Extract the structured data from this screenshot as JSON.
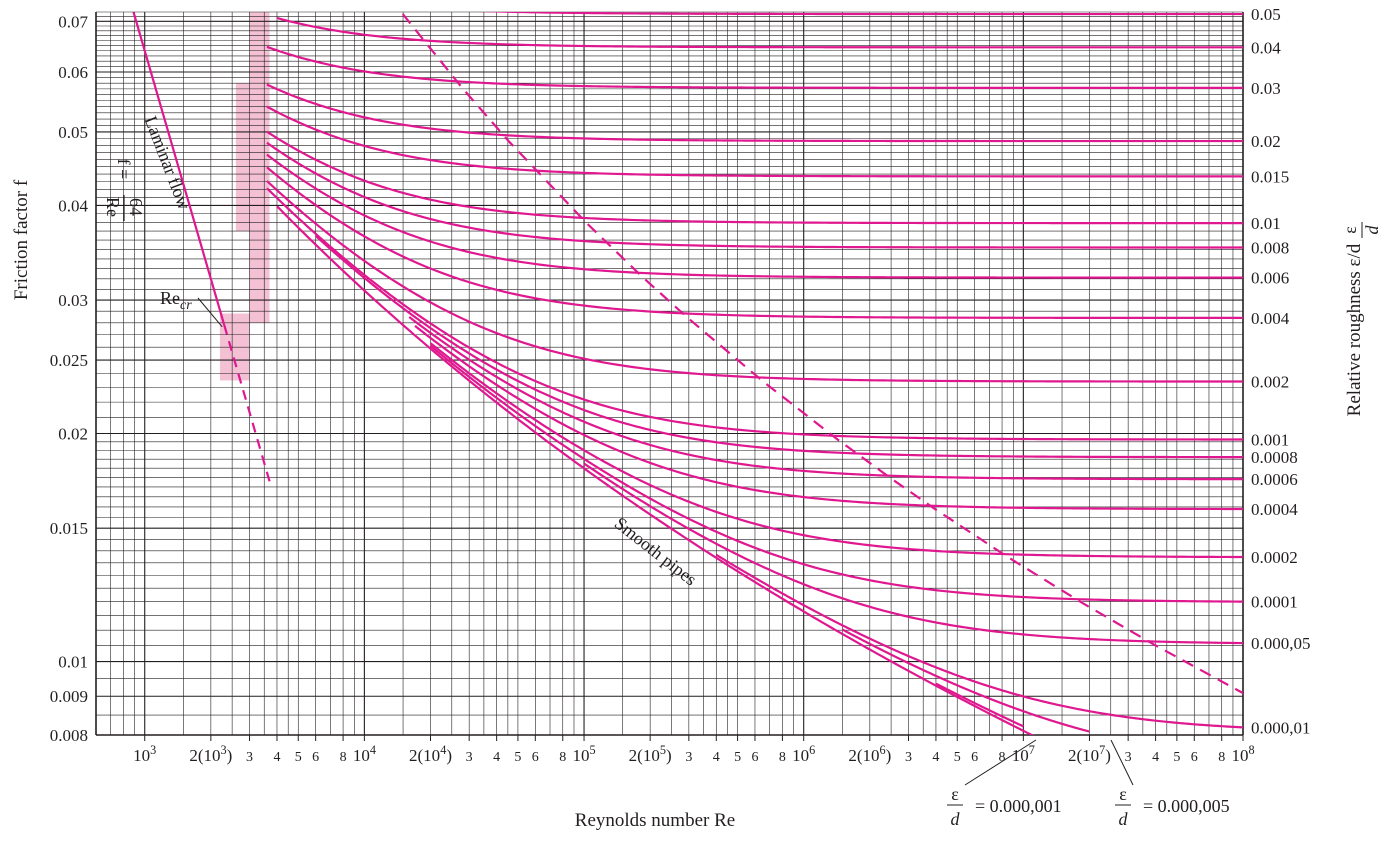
{
  "chart_data": {
    "type": "line",
    "title": "",
    "xlabel": "Reynolds number Re",
    "ylabel": "Friction factor f",
    "y2label": "Relative roughness ε/d",
    "xscale": "log",
    "yscale": "log",
    "xlim": [
      600,
      100000000
    ],
    "ylim": [
      0.008,
      0.072
    ],
    "grid": true,
    "line_color": "#e0188f",
    "shade_color": "#f4c0d4",
    "annotations": {
      "laminar": "Laminar flow",
      "formula_f": "f =",
      "formula_num": "64",
      "formula_den": "Re",
      "re_cr": "Re",
      "re_cr_sub": "cr",
      "smooth": "Smooth pipes"
    },
    "eps_callouts": [
      {
        "eps": "ε",
        "d": "d",
        "value": "= 0.000,001"
      },
      {
        "eps": "ε",
        "d": "d",
        "value": "= 0.000,005"
      }
    ],
    "x_ticks": [
      {
        "value": 1000,
        "label": "10",
        "sup": "3"
      },
      {
        "value": 2000,
        "label": "2(10",
        "sup": "3",
        "close": ")"
      },
      {
        "value": 3000,
        "label": "3"
      },
      {
        "value": 4000,
        "label": "4"
      },
      {
        "value": 5000,
        "label": "5"
      },
      {
        "value": 6000,
        "label": "6"
      },
      {
        "value": 8000,
        "label": "8"
      },
      {
        "value": 10000,
        "label": "10",
        "sup": "4"
      },
      {
        "value": 20000,
        "label": "2(10",
        "sup": "4",
        "close": ")"
      },
      {
        "value": 30000,
        "label": "3"
      },
      {
        "value": 40000,
        "label": "4"
      },
      {
        "value": 50000,
        "label": "5"
      },
      {
        "value": 60000,
        "label": "6"
      },
      {
        "value": 80000,
        "label": "8"
      },
      {
        "value": 100000,
        "label": "10",
        "sup": "5"
      },
      {
        "value": 200000,
        "label": "2(10",
        "sup": "5",
        "close": ")"
      },
      {
        "value": 300000,
        "label": "3"
      },
      {
        "value": 400000,
        "label": "4"
      },
      {
        "value": 500000,
        "label": "5"
      },
      {
        "value": 600000,
        "label": "6"
      },
      {
        "value": 800000,
        "label": "8"
      },
      {
        "value": 1000000,
        "label": "10",
        "sup": "6"
      },
      {
        "value": 2000000,
        "label": "2(10",
        "sup": "6",
        "close": ")"
      },
      {
        "value": 3000000,
        "label": "3"
      },
      {
        "value": 4000000,
        "label": "4"
      },
      {
        "value": 5000000,
        "label": "5"
      },
      {
        "value": 6000000,
        "label": "6"
      },
      {
        "value": 8000000,
        "label": "8"
      },
      {
        "value": 10000000,
        "label": "10",
        "sup": "7"
      },
      {
        "value": 20000000,
        "label": "2(10",
        "sup": "7",
        "close": ")"
      },
      {
        "value": 30000000,
        "label": "3"
      },
      {
        "value": 40000000,
        "label": "4"
      },
      {
        "value": 50000000,
        "label": "5"
      },
      {
        "value": 60000000,
        "label": "6"
      },
      {
        "value": 80000000,
        "label": "8"
      },
      {
        "value": 100000000,
        "label": "10",
        "sup": "8"
      }
    ],
    "y_ticks": [
      {
        "value": 0.008,
        "label": "0.008"
      },
      {
        "value": 0.009,
        "label": "0.009"
      },
      {
        "value": 0.01,
        "label": "0.01"
      },
      {
        "value": 0.015,
        "label": "0.015"
      },
      {
        "value": 0.02,
        "label": "0.02"
      },
      {
        "value": 0.025,
        "label": "0.025"
      },
      {
        "value": 0.03,
        "label": "0.03"
      },
      {
        "value": 0.04,
        "label": "0.04"
      },
      {
        "value": 0.05,
        "label": "0.05"
      },
      {
        "value": 0.06,
        "label": "0.06"
      },
      {
        "value": 0.07,
        "label": "0.07"
      }
    ],
    "series": [
      {
        "name": "0.05",
        "eps": 0.05
      },
      {
        "name": "0.04",
        "eps": 0.04
      },
      {
        "name": "0.03",
        "eps": 0.03
      },
      {
        "name": "0.02",
        "eps": 0.02
      },
      {
        "name": "0.015",
        "eps": 0.015
      },
      {
        "name": "0.01",
        "eps": 0.01
      },
      {
        "name": "0.008",
        "eps": 0.008
      },
      {
        "name": "0.006",
        "eps": 0.006
      },
      {
        "name": "0.004",
        "eps": 0.004
      },
      {
        "name": "0.002",
        "eps": 0.002
      },
      {
        "name": "0.001",
        "eps": 0.001
      },
      {
        "name": "0.0008",
        "eps": 0.0008
      },
      {
        "name": "0.0006",
        "eps": 0.0006
      },
      {
        "name": "0.0004",
        "eps": 0.0004
      },
      {
        "name": "0.0002",
        "eps": 0.0002
      },
      {
        "name": "0.0001",
        "eps": 0.0001
      },
      {
        "name": "0.000,05",
        "eps": 5e-05
      },
      {
        "name": "0.000,01",
        "eps": 1e-05
      },
      {
        "name": "0.000,005",
        "eps": 5e-06
      },
      {
        "name": "0.000,001",
        "eps": 1e-06
      },
      {
        "name": "Smooth pipes",
        "eps": 0
      }
    ],
    "laminar": {
      "name": "Laminar flow",
      "formula": "f = 64/Re",
      "re_cr": 2300
    }
  }
}
